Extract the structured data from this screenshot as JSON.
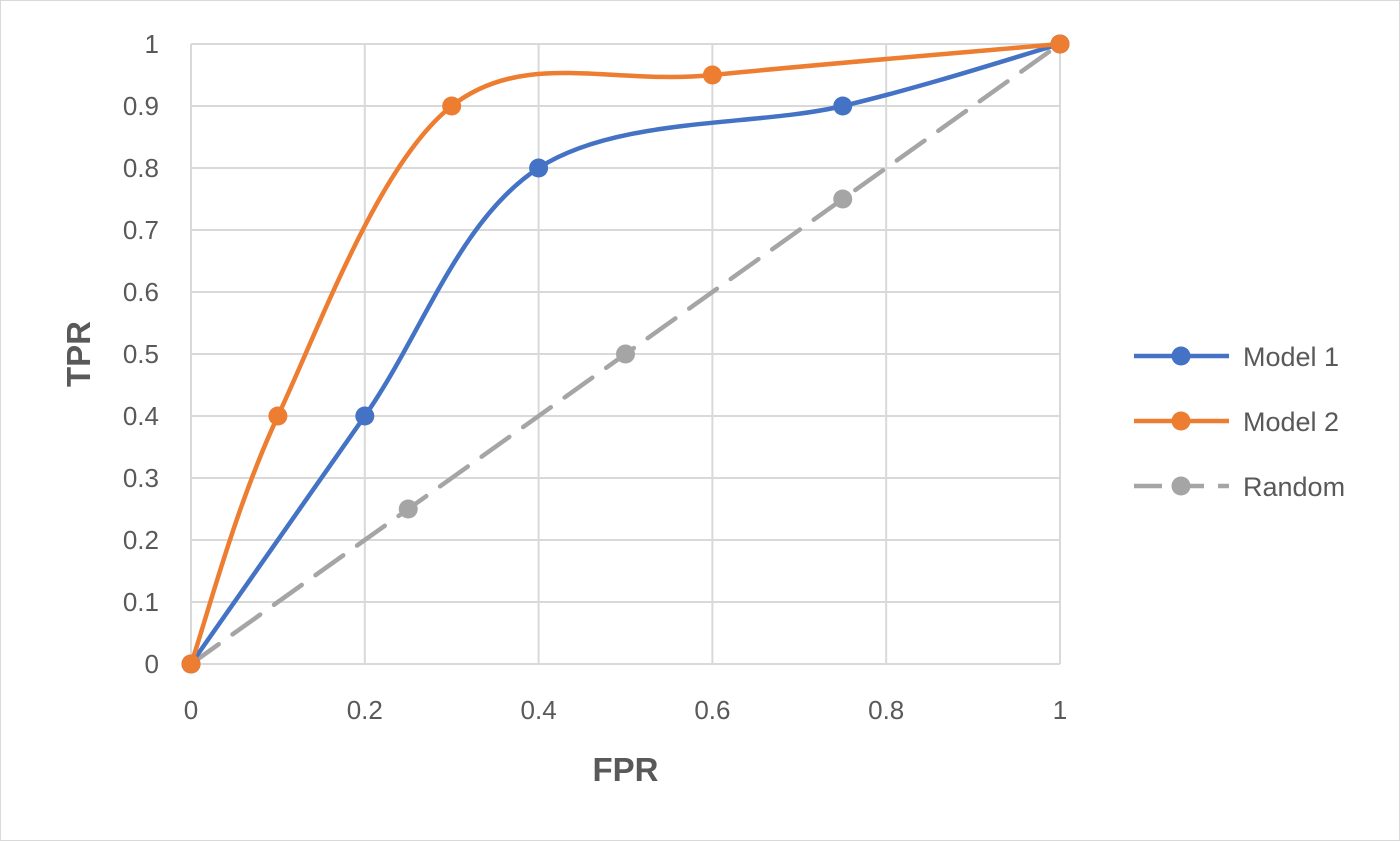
{
  "chart_data": {
    "type": "line",
    "title": "",
    "xlabel": "FPR",
    "ylabel": "TPR",
    "xlim": [
      0,
      1
    ],
    "ylim": [
      0,
      1
    ],
    "x_ticks": [
      "0",
      "0.2",
      "0.4",
      "0.6",
      "0.8",
      "1"
    ],
    "y_ticks": [
      "0",
      "0.1",
      "0.2",
      "0.3",
      "0.4",
      "0.5",
      "0.6",
      "0.7",
      "0.8",
      "0.9",
      "1"
    ],
    "grid": true,
    "legend_position": "right",
    "smoothed": true,
    "series": [
      {
        "name": "Model 1",
        "color": "#4472c4",
        "dash": "solid",
        "points": [
          {
            "x": 0,
            "y": 0
          },
          {
            "x": 0.2,
            "y": 0.4
          },
          {
            "x": 0.4,
            "y": 0.8
          },
          {
            "x": 0.75,
            "y": 0.9
          },
          {
            "x": 1,
            "y": 1
          }
        ]
      },
      {
        "name": "Model 2",
        "color": "#ed7d31",
        "dash": "solid",
        "points": [
          {
            "x": 0,
            "y": 0
          },
          {
            "x": 0.1,
            "y": 0.4
          },
          {
            "x": 0.3,
            "y": 0.9
          },
          {
            "x": 0.6,
            "y": 0.95
          },
          {
            "x": 1,
            "y": 1
          }
        ]
      },
      {
        "name": "Random",
        "color": "#a5a5a5",
        "dash": "dashed",
        "points": [
          {
            "x": 0,
            "y": 0
          },
          {
            "x": 0.25,
            "y": 0.25
          },
          {
            "x": 0.5,
            "y": 0.5
          },
          {
            "x": 0.75,
            "y": 0.75
          },
          {
            "x": 1,
            "y": 1
          }
        ]
      }
    ]
  }
}
